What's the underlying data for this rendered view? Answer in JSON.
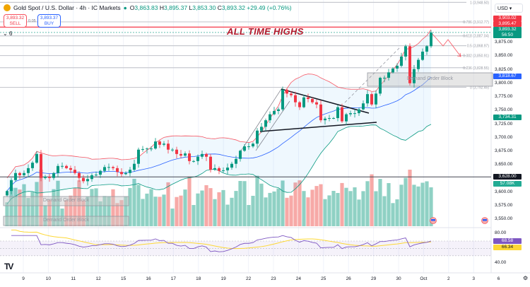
{
  "header": {
    "symbol": "Gold Spot / U.S. Dollar · 4h · IC Markets",
    "open_label": "O",
    "open": "3,863.83",
    "high_label": "H",
    "high": "3,895.37",
    "low_label": "L",
    "low": "3,853.30",
    "close_label": "C",
    "close": "3,893.32",
    "change": "+29.49 (+0.76%)"
  },
  "trade": {
    "sell_price": "3,893.32",
    "sell_label": "SELL",
    "buy_price": "3,893.37",
    "buy_label": "BUY",
    "spread": "0.05"
  },
  "legend_count": "6",
  "annotation": "ALL TIME HIGHS",
  "demand_label": "Demand Order Block",
  "currency": "USD",
  "fib_levels": [
    {
      "label": "1 (3,948.50)",
      "price": 3948.5
    },
    {
      "label": "0.786 (3,912.77)",
      "price": 3912.77
    },
    {
      "label": "0.618 (3,887.04)",
      "price": 3887.04
    },
    {
      "label": "0.5 (3,868.97)",
      "price": 3868.97
    },
    {
      "label": "0.382 (3,850.91)",
      "price": 3850.91
    },
    {
      "label": "0.236 (3,828.55)",
      "price": 3828.55
    },
    {
      "label": "0 (3,792.45)",
      "price": 3792.45
    }
  ],
  "price_axis": [
    "3,875.00",
    "3,850.00",
    "3,825.00",
    "3,800.00",
    "3,775.00",
    "3,750.00",
    "3,725.00",
    "3,700.00",
    "3,675.00",
    "3,650.00",
    "3,600.00",
    "3,575.00",
    "3,550.00"
  ],
  "price_tags": [
    {
      "text": "3,903.02",
      "price": 3903.02,
      "color": "#f23645"
    },
    {
      "text": "3,895.47",
      "price": 3895.47,
      "color": "#f23645"
    },
    {
      "text": "3,893.32",
      "sub": "56:50",
      "price": 3893.32,
      "color": "#089981"
    },
    {
      "text": "3,818.67",
      "price": 3818.67,
      "color": "#2962ff"
    },
    {
      "text": "3,734.31",
      "price": 3734.31,
      "color": "#089981"
    },
    {
      "text": "3,628.00",
      "price": 3628.0,
      "color": "#131722"
    }
  ],
  "volume_tag": "57.08K",
  "rsi": {
    "axis": [
      "80.00",
      "40.00"
    ],
    "value": "68.58",
    "ma_value": "66.34",
    "rsi_color": "#7e57c2",
    "ma_color": "#fdd835"
  },
  "dates": [
    "9",
    "10",
    "11",
    "12",
    "15",
    "16",
    "17",
    "18",
    "19",
    "22",
    "23",
    "24",
    "25",
    "26",
    "29",
    "30",
    "Oct",
    "2",
    "3",
    "6"
  ],
  "colors": {
    "up": "#089981",
    "down": "#f23645",
    "ath_line": "#f7525f",
    "bb_upper": "#f7525f",
    "bb_lower": "#089981",
    "bb_basis": "#2962ff"
  },
  "chart_data": {
    "type": "candlestick",
    "interval": "4h",
    "closes": [
      3602,
      3622,
      3635,
      3631,
      3635,
      3644,
      3654,
      3670,
      3626,
      3628,
      3626,
      3635,
      3648,
      3648,
      3644,
      3641,
      3635,
      3626,
      3620,
      3624,
      3631,
      3632,
      3639,
      3646,
      3646,
      3644,
      3637,
      3633,
      3635,
      3641,
      3652,
      3678,
      3679,
      3680,
      3680,
      3693,
      3687,
      3689,
      3678,
      3678,
      3670,
      3667,
      3671,
      3657,
      3657,
      3665,
      3670,
      3665,
      3641,
      3644,
      3639,
      3640,
      3645,
      3652,
      3661,
      3676,
      3684,
      3684,
      3689,
      3713,
      3720,
      3732,
      3743,
      3749,
      3752,
      3788,
      3781,
      3778,
      3765,
      3756,
      3774,
      3771,
      3765,
      3761,
      3732,
      3735,
      3736,
      3736,
      3756,
      3730,
      3743,
      3745,
      3745,
      3752,
      3763,
      3780,
      3761,
      3781,
      3810,
      3810,
      3820,
      3827,
      3832,
      3849,
      3868,
      3800,
      3826,
      3843,
      3858,
      3868,
      3893
    ],
    "ath_level": 3903.02,
    "support_level": 3628.0,
    "yrange": [
      3545,
      3955
    ]
  }
}
